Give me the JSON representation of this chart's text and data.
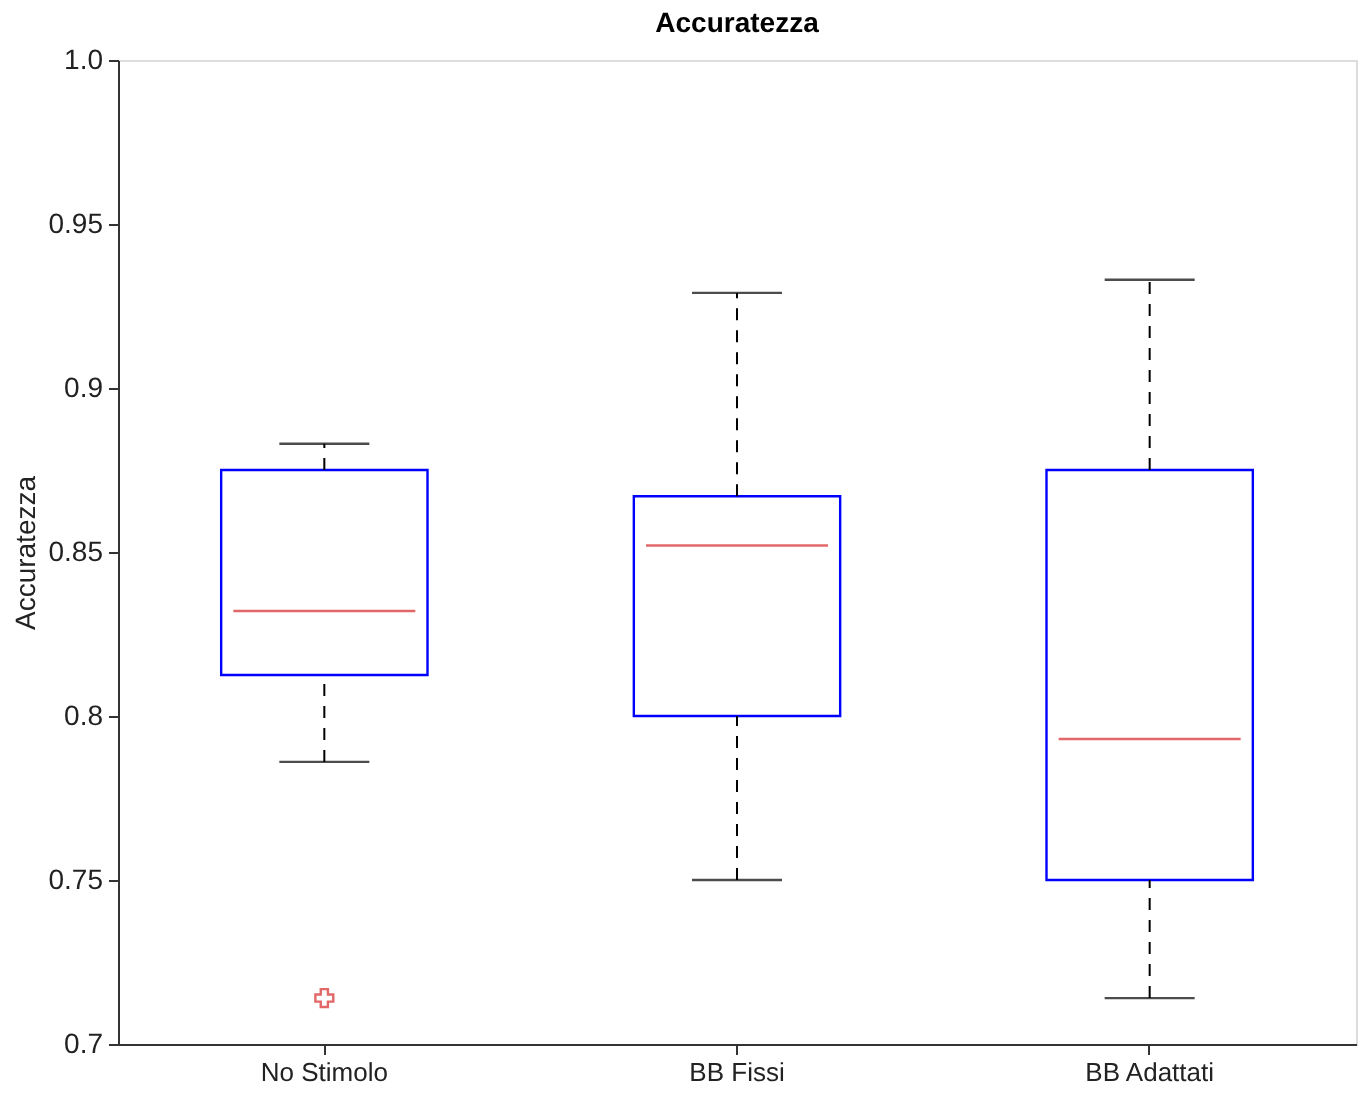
{
  "chart_data": {
    "type": "box",
    "title": "Accuratezza",
    "ylabel": "Accuratezza",
    "categories": [
      "No Stimolo",
      "BB Fissi",
      "BB Adattati"
    ],
    "series": [
      {
        "boxes": [
          {
            "low": 0.786,
            "q1": 0.8125,
            "median": 0.832,
            "q3": 0.875,
            "high": 0.883,
            "outliers": [
              0.714
            ]
          },
          {
            "low": 0.75,
            "q1": 0.8,
            "median": 0.852,
            "q3": 0.867,
            "high": 0.929
          },
          {
            "low": 0.714,
            "q1": 0.75,
            "median": 0.793,
            "q3": 0.875,
            "high": 0.933
          }
        ]
      }
    ],
    "ylim": [
      0.7,
      1.0
    ],
    "yticks": [
      0.7,
      0.75,
      0.8,
      0.85,
      0.9,
      0.95,
      {
        "value": 1.0,
        "label": "1.0"
      }
    ],
    "grid": false
  }
}
